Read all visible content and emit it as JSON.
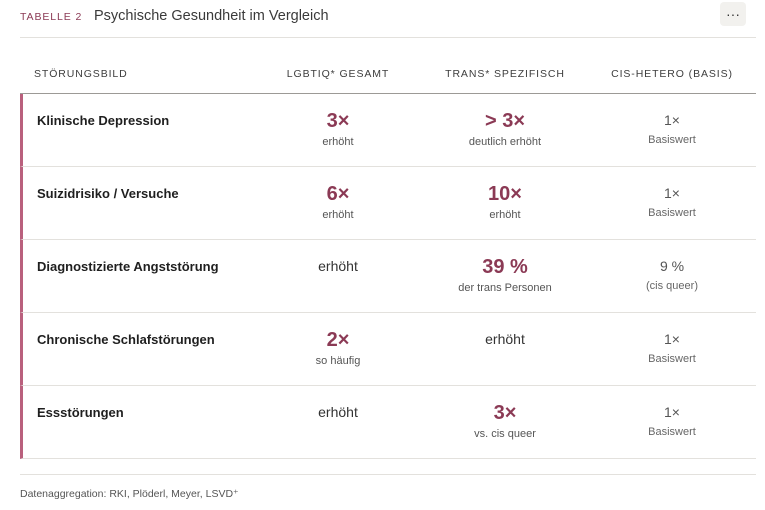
{
  "header": {
    "tag": "TABELLE 2",
    "title": "Psychische Gesundheit im Vergleich",
    "menu_label": "···"
  },
  "columns": [
    "STÖRUNGSBILD",
    "LGBTIQ* GESAMT",
    "TRANS* SPEZIFISCH",
    "CIS-HETERO (BASIS)"
  ],
  "rows": [
    {
      "label": "Klinische Depression",
      "lgbtiq": {
        "main": "3×",
        "sub": "erhöht"
      },
      "trans": {
        "main": "> 3×",
        "sub": "deutlich erhöht"
      },
      "cis": {
        "main": "1×",
        "sub": "Basiswert"
      }
    },
    {
      "label": "Suizidrisiko / Versuche",
      "lgbtiq": {
        "main": "6×",
        "sub": "erhöht"
      },
      "trans": {
        "main": "10×",
        "sub": "erhöht"
      },
      "cis": {
        "main": "1×",
        "sub": "Basiswert"
      }
    },
    {
      "label": "Diagnostizierte Angststörung",
      "lgbtiq": {
        "main": "erhöht",
        "sub": ""
      },
      "trans": {
        "main": "39 %",
        "sub": "der trans Personen"
      },
      "cis": {
        "main": "9 %",
        "sub": "(cis queer)"
      }
    },
    {
      "label": "Chronische Schlafstörungen",
      "lgbtiq": {
        "main": "2×",
        "sub": "so häufig"
      },
      "trans": {
        "main": "erhöht",
        "sub": ""
      },
      "cis": {
        "main": "1×",
        "sub": "Basiswert"
      }
    },
    {
      "label": "Essstörungen",
      "lgbtiq": {
        "main": "erhöht",
        "sub": ""
      },
      "trans": {
        "main": "3×",
        "sub": "vs. cis queer"
      },
      "cis": {
        "main": "1×",
        "sub": "Basiswert"
      }
    }
  ],
  "footer": "Datenaggregation: RKI, Plöderl, Meyer, LSVD⁺",
  "colors": {
    "accent": "#8b3a55",
    "row_border": "#b9607d"
  }
}
